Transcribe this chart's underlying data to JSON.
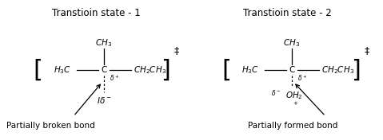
{
  "title1": "Transtioin state - 1",
  "title2": "Transtioin state - 2",
  "label1": "Partially broken bond",
  "label2": "Partially formed bond",
  "bg_color": "#ffffff",
  "text_color": "#000000",
  "fontsize_title": 8.5,
  "fontsize_chem": 7.5,
  "fontsize_small": 6.0,
  "fontsize_label": 7.5,
  "fontsize_bracket": 22,
  "fontsize_dagger": 9
}
